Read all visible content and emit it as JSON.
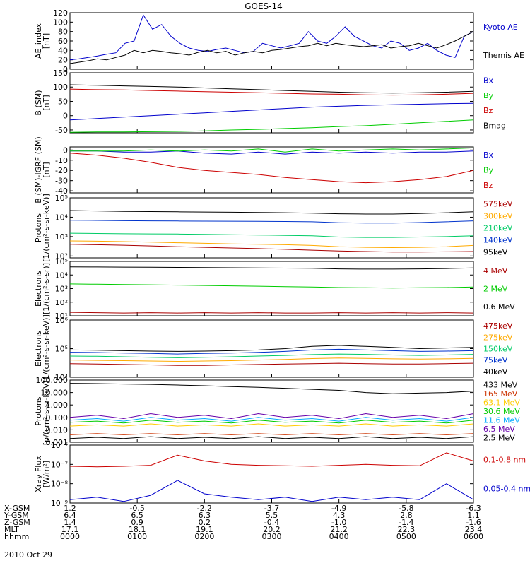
{
  "title": "GOES-14",
  "date": "2010 Oct 29",
  "chart_data": [
    {
      "type": "line",
      "ylabel": "AE_index\n[nT]",
      "yscale": "linear",
      "ylim": [
        0,
        120
      ],
      "yticks": [
        "0",
        "20",
        "40",
        "60",
        "80",
        "100",
        "120"
      ],
      "ytick_vals": [
        0,
        20,
        40,
        60,
        80,
        100,
        120
      ],
      "series": [
        {
          "name": "Kyoto AE",
          "color": "#0000cc",
          "values": [
            20,
            22,
            25,
            28,
            32,
            35,
            55,
            60,
            115,
            85,
            95,
            70,
            55,
            45,
            40,
            38,
            42,
            45,
            40,
            35,
            38,
            55,
            50,
            45,
            50,
            55,
            80,
            60,
            55,
            70,
            90,
            70,
            60,
            50,
            45,
            60,
            55,
            40,
            45,
            55,
            40,
            30,
            25,
            70,
            80
          ]
        },
        {
          "name": "Themis AE",
          "color": "#000000",
          "values": [
            12,
            15,
            18,
            22,
            20,
            25,
            30,
            40,
            35,
            40,
            38,
            35,
            33,
            30,
            36,
            40,
            35,
            38,
            30,
            35,
            38,
            35,
            40,
            42,
            45,
            48,
            50,
            55,
            50,
            55,
            52,
            50,
            48,
            50,
            52,
            45,
            48,
            50,
            55,
            50,
            45,
            52,
            60,
            70,
            80
          ]
        }
      ]
    },
    {
      "type": "line",
      "ylabel": "B (SM)\n[nT]",
      "yscale": "linear",
      "ylim": [
        -60,
        150
      ],
      "yticks": [
        "-50",
        "0",
        "50",
        "100",
        "150"
      ],
      "ytick_vals": [
        -50,
        0,
        50,
        100,
        150
      ],
      "series": [
        {
          "name": "Bx",
          "color": "#0000cc",
          "values": [
            -15,
            -10,
            -5,
            0,
            5,
            10,
            15,
            20,
            25,
            30,
            33,
            36,
            38,
            40,
            42,
            43
          ]
        },
        {
          "name": "By",
          "color": "#00cc00",
          "values": [
            -58,
            -57,
            -57,
            -56,
            -55,
            -53,
            -50,
            -48,
            -45,
            -42,
            -38,
            -35,
            -30,
            -25,
            -20,
            -15
          ]
        },
        {
          "name": "Bz",
          "color": "#cc0000",
          "values": [
            93,
            91,
            90,
            88,
            86,
            84,
            82,
            80,
            78,
            76,
            75,
            73,
            72,
            73,
            75,
            78
          ]
        },
        {
          "name": "Bmag",
          "color": "#000000",
          "values": [
            108,
            106,
            104,
            102,
            100,
            97,
            94,
            91,
            88,
            85,
            82,
            80,
            79,
            80,
            82,
            85
          ]
        }
      ]
    },
    {
      "type": "line",
      "ylabel": "B (SM)-IGRF (SM)\n[nT]",
      "yscale": "linear",
      "ylim": [
        -42,
        3
      ],
      "yticks": [
        "-40",
        "-30",
        "-20",
        "-10",
        "0"
      ],
      "ytick_vals": [
        -40,
        -30,
        -20,
        -10,
        0
      ],
      "series": [
        {
          "name": "Bx",
          "color": "#0000cc",
          "values": [
            -1,
            -1,
            -2,
            -2,
            -1,
            -3,
            -4,
            -2,
            -4,
            -2,
            -3,
            -2,
            -3,
            -2,
            -2,
            -1
          ]
        },
        {
          "name": "By",
          "color": "#00cc00",
          "values": [
            -1,
            -1,
            -1,
            0,
            -1,
            0,
            -1,
            1,
            -2,
            1,
            -1,
            0,
            1,
            0,
            1,
            2
          ]
        },
        {
          "name": "Bz",
          "color": "#cc0000",
          "values": [
            -3,
            -5,
            -8,
            -12,
            -17,
            -20,
            -22,
            -24,
            -27,
            -29,
            -31,
            -32,
            -31,
            -29,
            -26,
            -20
          ]
        }
      ]
    },
    {
      "type": "line",
      "ylabel": "Protons\n[1/(cm²-s-sr-keV)]",
      "yscale": "log",
      "ylim": [
        80,
        100000
      ],
      "yticks": [
        "10²",
        "10³",
        "10⁴",
        "10⁵"
      ],
      "ytick_vals": [
        100,
        1000,
        10000,
        100000
      ],
      "series": [
        {
          "name": "575keV",
          "color": "#aa0000",
          "values": [
            400,
            380,
            360,
            330,
            300,
            280,
            260,
            240,
            220,
            200,
            180,
            170,
            160,
            160,
            165,
            170
          ]
        },
        {
          "name": "300keV",
          "color": "#ffaa00",
          "values": [
            600,
            580,
            550,
            520,
            480,
            450,
            420,
            400,
            380,
            350,
            300,
            280,
            270,
            280,
            300,
            350
          ]
        },
        {
          "name": "210keV",
          "color": "#00cc66",
          "values": [
            1500,
            1450,
            1400,
            1380,
            1350,
            1300,
            1250,
            1200,
            1150,
            1100,
            950,
            900,
            900,
            950,
            1000,
            1100
          ]
        },
        {
          "name": "140keV",
          "color": "#0033cc",
          "values": [
            7000,
            6800,
            6600,
            6500,
            6400,
            6300,
            6200,
            6100,
            6000,
            5800,
            5200,
            5000,
            5000,
            5300,
            5800,
            6500
          ]
        },
        {
          "name": "95keV",
          "color": "#000000",
          "values": [
            22000,
            21000,
            20000,
            19500,
            19000,
            18500,
            18000,
            17500,
            17000,
            16000,
            15000,
            14500,
            14500,
            15500,
            17000,
            19000
          ]
        }
      ]
    },
    {
      "type": "line",
      "ylabel": "Electrons\n[1/(cm²-s-sr)]",
      "yscale": "log",
      "ylim": [
        10,
        100000
      ],
      "yticks": [
        "10¹",
        "10²",
        "10³",
        "10⁴",
        "10⁵"
      ],
      "ytick_vals": [
        10,
        100,
        1000,
        10000,
        100000
      ],
      "series": [
        {
          "name": "4 MeV",
          "color": "#aa0000",
          "values": [
            18,
            17,
            16,
            17,
            16,
            17,
            16,
            17,
            16,
            16,
            17,
            16,
            17,
            16,
            17,
            16
          ]
        },
        {
          "name": "2 MeV",
          "color": "#00cc00",
          "values": [
            2200,
            2100,
            2000,
            1900,
            1800,
            1700,
            1600,
            1500,
            1400,
            1300,
            1200,
            1150,
            1100,
            1150,
            1200,
            1300
          ]
        },
        {
          "name": "0.6 MeV",
          "color": "#000000",
          "values": [
            40000,
            39000,
            38000,
            37000,
            36000,
            35000,
            34000,
            33000,
            32000,
            31000,
            28000,
            27000,
            27000,
            28000,
            30000,
            33000
          ]
        }
      ]
    },
    {
      "type": "line",
      "ylabel": "Electrons\n[1/(cm²-s-sr-keV)]",
      "yscale": "log",
      "ylim": [
        10000,
        1000000
      ],
      "yticks": [
        "10⁴",
        "10⁵",
        "10⁶"
      ],
      "ytick_vals": [
        10000,
        100000,
        1000000
      ],
      "series": [
        {
          "name": "475keV",
          "color": "#aa0000",
          "values": [
            30000,
            29000,
            28000,
            27000,
            26000,
            26000,
            27000,
            28000,
            29000,
            30000,
            31000,
            30000,
            29000,
            29000,
            30000,
            31000
          ]
        },
        {
          "name": "275keV",
          "color": "#ffaa00",
          "values": [
            40000,
            39000,
            38000,
            37000,
            36000,
            37000,
            38000,
            40000,
            42000,
            45000,
            47000,
            46000,
            44000,
            43000,
            44000,
            46000
          ]
        },
        {
          "name": "150keV",
          "color": "#00cc66",
          "values": [
            55000,
            54000,
            52000,
            50000,
            48000,
            50000,
            52000,
            55000,
            58000,
            62000,
            65000,
            63000,
            60000,
            58000,
            60000,
            63000
          ]
        },
        {
          "name": "75keV",
          "color": "#0033cc",
          "values": [
            75000,
            73000,
            70000,
            68000,
            65000,
            68000,
            70000,
            74000,
            80000,
            90000,
            95000,
            90000,
            85000,
            80000,
            82000,
            85000
          ]
        },
        {
          "name": "40keV",
          "color": "#000000",
          "values": [
            90000,
            88000,
            85000,
            82000,
            80000,
            82000,
            85000,
            90000,
            100000,
            120000,
            130000,
            120000,
            110000,
            100000,
            105000,
            110000
          ]
        }
      ]
    },
    {
      "type": "line",
      "ylabel": "Protons\n[p/(cm²-s-sr-keV)]",
      "yscale": "log",
      "ylim": [
        0.001,
        100
      ],
      "yticks": [
        "0.001",
        "0.010",
        "0.100",
        "1.000",
        "10.000",
        "100.000"
      ],
      "ytick_vals": [
        0.001,
        0.01,
        0.1,
        1,
        10,
        100
      ],
      "series": [
        {
          "name": "433 MeV",
          "color": "#000000",
          "values": [
            55,
            52,
            48,
            45,
            40,
            35,
            30,
            26,
            22,
            18,
            15,
            10,
            8,
            9,
            10,
            13
          ]
        },
        {
          "name": "165 MeV",
          "color": "#cc3300",
          "values": [
            0.004,
            0.005,
            0.004,
            0.005,
            0.004,
            0.005,
            0.004,
            0.005,
            0.004,
            0.005,
            0.004,
            0.005,
            0.004,
            0.005,
            0.004,
            0.005
          ]
        },
        {
          "name": "63.1 MeV",
          "color": "#ffcc00",
          "values": [
            0.02,
            0.025,
            0.02,
            0.03,
            0.02,
            0.025,
            0.02,
            0.03,
            0.02,
            0.025,
            0.02,
            0.03,
            0.02,
            0.025,
            0.02,
            0.03
          ]
        },
        {
          "name": "30.6 MeV",
          "color": "#00cc00",
          "values": [
            0.04,
            0.05,
            0.035,
            0.06,
            0.04,
            0.05,
            0.035,
            0.06,
            0.04,
            0.05,
            0.035,
            0.06,
            0.04,
            0.05,
            0.035,
            0.06
          ]
        },
        {
          "name": "11.6 MeV",
          "color": "#00aaff",
          "values": [
            0.06,
            0.08,
            0.05,
            0.1,
            0.06,
            0.08,
            0.05,
            0.1,
            0.06,
            0.08,
            0.05,
            0.1,
            0.06,
            0.08,
            0.05,
            0.1
          ]
        },
        {
          "name": "6.5 MeV",
          "color": "#6600aa",
          "values": [
            0.1,
            0.15,
            0.08,
            0.2,
            0.1,
            0.15,
            0.08,
            0.2,
            0.1,
            0.15,
            0.08,
            0.2,
            0.1,
            0.15,
            0.08,
            0.2
          ]
        },
        {
          "name": "2.5 MeV",
          "color": "#000000",
          "values": [
            0.002,
            0.0025,
            0.002,
            0.0028,
            0.002,
            0.0025,
            0.002,
            0.0028,
            0.002,
            0.0025,
            0.002,
            0.0028,
            0.002,
            0.0025,
            0.002,
            0.0028
          ]
        }
      ]
    },
    {
      "type": "line",
      "ylabel": "Xray Flux\n[W/m²]",
      "yscale": "log",
      "ylim": [
        1e-09,
        1e-06
      ],
      "yticks": [
        "10⁻⁹",
        "10⁻⁸",
        "10⁻⁷",
        "10⁻⁶"
      ],
      "ytick_vals": [
        1e-09,
        1e-08,
        1e-07,
        1e-06
      ],
      "series": [
        {
          "name": "0.1-0.8 nm",
          "color": "#cc0000",
          "values": [
            8e-08,
            7.5e-08,
            8e-08,
            9e-08,
            3e-07,
            1.5e-07,
            1e-07,
            9e-08,
            8.5e-08,
            8e-08,
            9e-08,
            1e-07,
            9e-08,
            8.5e-08,
            4e-07,
            1.5e-07
          ]
        },
        {
          "name": "0.05-0.4 nm",
          "color": "#0000cc",
          "values": [
            1.5e-09,
            2e-09,
            1.2e-09,
            2.5e-09,
            1.5e-08,
            3e-09,
            2e-09,
            1.5e-09,
            2e-09,
            1.2e-09,
            2e-09,
            1.5e-09,
            2e-09,
            1.5e-09,
            1e-08,
            1.5e-09
          ]
        }
      ]
    }
  ],
  "xaxis": {
    "rows": [
      {
        "label": "X-GSM",
        "values": [
          "1.2",
          "-0.5",
          "-2.2",
          "-3.7",
          "-4.9",
          "-5.8",
          "-6.3"
        ]
      },
      {
        "label": "Y-GSM",
        "values": [
          "6.4",
          "6.5",
          "6.3",
          "5.5",
          "4.3",
          "2.8",
          "1.1"
        ]
      },
      {
        "label": "Z-GSM",
        "values": [
          "1.4",
          "0.9",
          "0.2",
          "-0.4",
          "-1.0",
          "-1.4",
          "-1.6"
        ]
      },
      {
        "label": "MLT",
        "values": [
          "17.1",
          "18.1",
          "19.1",
          "20.2",
          "21.2",
          "22.3",
          "23.4"
        ]
      },
      {
        "label": "hhmm",
        "values": [
          "0000",
          "0100",
          "0200",
          "0300",
          "0400",
          "0500",
          "0600"
        ]
      }
    ]
  }
}
